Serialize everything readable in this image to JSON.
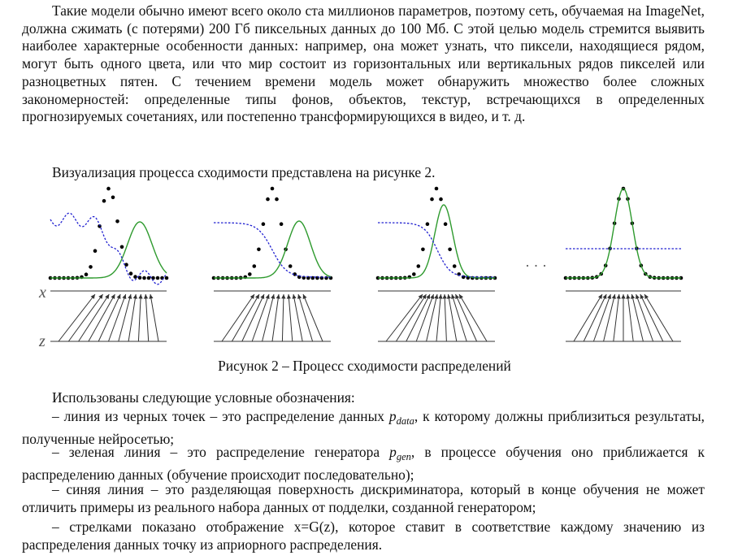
{
  "paragraph_1": "Такие модели обычно имеют всего около ста миллионов параметров, поэтому сеть, обучаемая на ImageNet, должна сжимать (с потерями) 200 Гб пиксельных данных до 100 Мб. С этой целью модель стремится выявить наиболее характерные особенности данных: например, она может узнать, что пиксели, находящиеся рядом, могут быть одного цвета, или что мир состоит из горизонтальных или вертикальных рядов пикселей или разноцветных пятен. С течением времени модель может обнаружить множество более сложных закономерностей: определенные типы фонов, объектов, текстур, встречающихся в определенных прогнозируемых сочетаниях, или постепенно трансформирующихся в видео, и т. д.",
  "paragraph_2": "Визуализация процесса сходимости представлена на рисунке 2.",
  "figure": {
    "axis_x_label": "x",
    "axis_z_label": "z",
    "ellipsis": "· · ·",
    "colors": {
      "data": "#000000",
      "generator": "#2e9a2e",
      "discriminator": "#2020d0"
    }
  },
  "caption": "Рисунок 2 – Процесс сходимости распределений",
  "paragraph_3": "Использованы следующие условные обозначения:",
  "legend": {
    "item1_a": "– линия из черных точек – это распределение данных ",
    "item1_sym": "p",
    "item1_sub": "data",
    "item1_b": ", к которому должны приблизиться результаты, полученные нейросетью;",
    "item2_a": "– зеленая линия – это распределение генератора ",
    "item2_sym": "p",
    "item2_sub": "gen",
    "item2_b": ", в процессе обучения оно приближается к распределению данных (обучение происходит последовательно);",
    "item3": "– синяя линия – это разделяющая поверхность дискриминатора, который в конце обучения не может отличить примеры из реального набора данных от подделки, созданной генератором;",
    "item4": "– стрелками показано отображение x=G(z), которое ставит в соответствие каждому значению из распределения данных точку из априорного распределения."
  }
}
